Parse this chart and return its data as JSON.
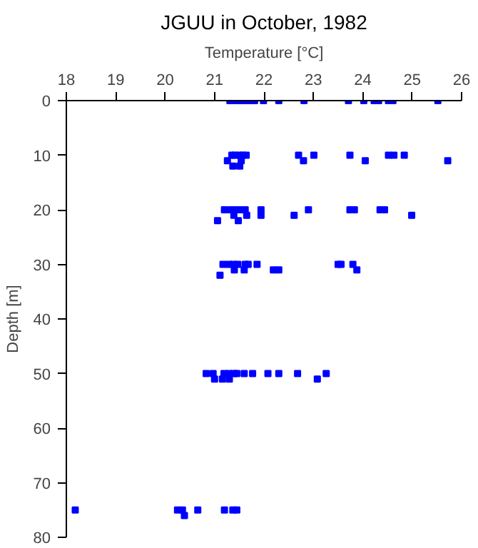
{
  "chart_data": {
    "type": "scatter",
    "title": "JGUU in October, 1982",
    "xlabel": "Temperature [°C]",
    "ylabel": "Depth [m]",
    "xlim": [
      18,
      26
    ],
    "xticks": [
      18,
      19,
      20,
      21,
      22,
      23,
      24,
      25,
      26
    ],
    "ylim": [
      80,
      0
    ],
    "yticks": [
      0,
      10,
      20,
      30,
      40,
      50,
      60,
      70,
      80
    ],
    "grid": false,
    "marker": "square",
    "series": [
      {
        "color": "#0000ff",
        "x": [
          21.31,
          21.43,
          21.52,
          21.62,
          21.71,
          21.81,
          21.99,
          22.3,
          22.81,
          23.71,
          24.02,
          24.23,
          24.32,
          24.52,
          24.61,
          25.52,
          21.35,
          21.41,
          21.5,
          21.57,
          21.64,
          22.7,
          23.01,
          23.74,
          24.52,
          24.63,
          24.84,
          21.26,
          21.54,
          22.8,
          24.05,
          25.72,
          21.37,
          21.51,
          21.2,
          21.33,
          21.43,
          21.52,
          21.62,
          21.94,
          22.9,
          23.74,
          23.83,
          24.35,
          24.44,
          21.39,
          21.65,
          21.94,
          22.61,
          24.99,
          21.06,
          21.48,
          21.17,
          21.29,
          21.38,
          21.47,
          21.62,
          21.68,
          21.86,
          23.5,
          23.56,
          23.8,
          21.4,
          21.6,
          22.19,
          22.3,
          23.88,
          21.11,
          20.83,
          20.97,
          21.19,
          21.29,
          21.39,
          21.45,
          21.6,
          21.77,
          22.08,
          22.3,
          22.68,
          23.26,
          21.0,
          21.16,
          21.3,
          23.08,
          18.18,
          20.25,
          20.35,
          20.66,
          21.2,
          21.37,
          21.45,
          20.39
        ],
        "values": [
          0,
          0,
          0,
          0,
          0,
          0,
          0,
          0,
          0,
          0,
          0,
          0,
          0,
          0,
          0,
          0,
          10,
          10,
          10,
          10,
          10,
          10,
          10,
          10,
          10,
          10,
          10,
          11,
          11,
          11,
          11,
          11,
          12,
          12,
          20,
          20,
          20,
          20,
          20,
          20,
          20,
          20,
          20,
          20,
          20,
          21,
          21,
          21,
          21,
          21,
          22,
          22,
          30,
          30,
          30,
          30,
          30,
          30,
          30,
          30,
          30,
          30,
          31,
          31,
          31,
          31,
          31,
          32,
          50,
          50,
          50,
          50,
          50,
          50,
          50,
          50,
          50,
          50,
          50,
          50,
          51,
          51,
          51,
          51,
          75,
          75,
          75,
          75,
          75,
          75,
          75,
          76
        ]
      }
    ]
  }
}
